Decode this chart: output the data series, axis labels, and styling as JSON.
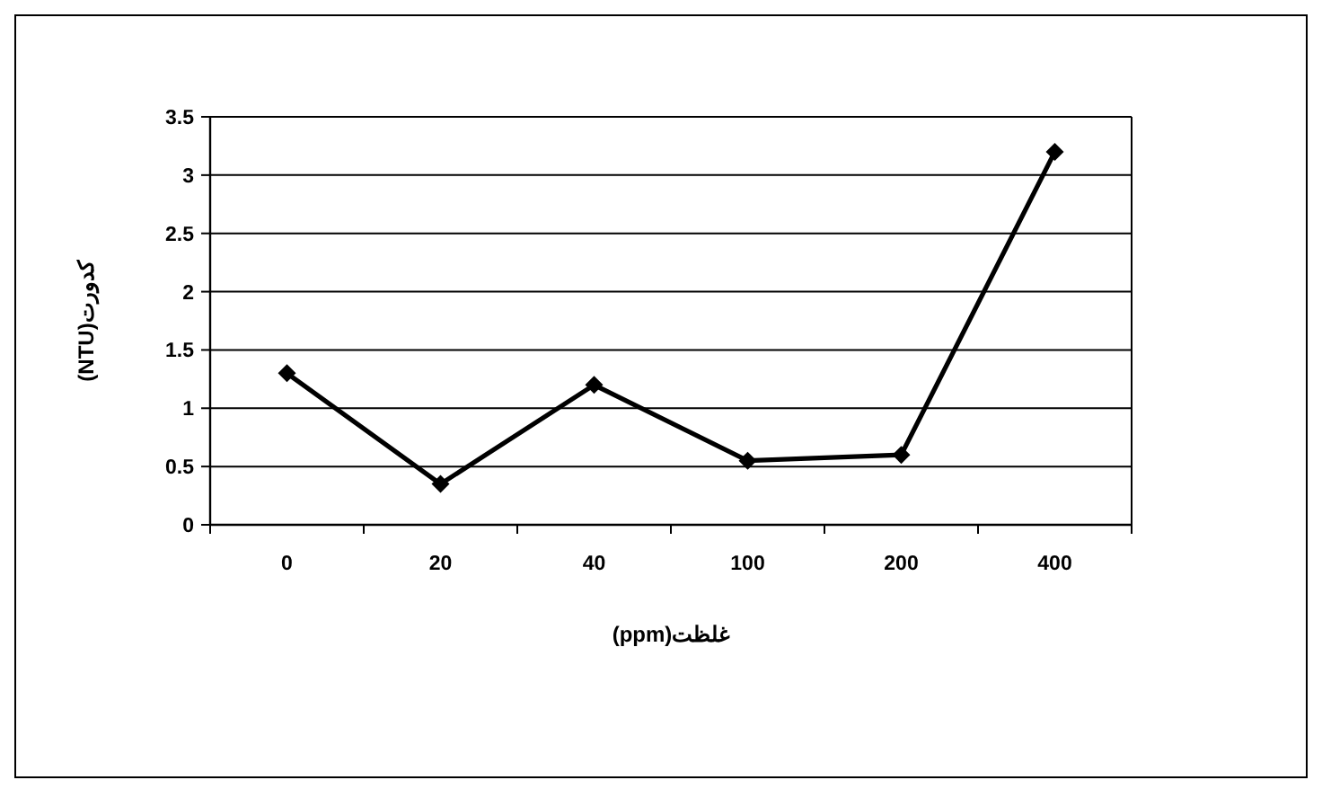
{
  "chart_data": {
    "type": "line",
    "xlabel": "غلظت(ppm)",
    "ylabel": "کدورت(NTU)",
    "categories": [
      "0",
      "20",
      "40",
      "100",
      "200",
      "400"
    ],
    "series": [
      {
        "color": "#000000",
        "values": [
          1.3,
          0.35,
          1.2,
          0.55,
          0.6,
          3.2
        ]
      }
    ],
    "ylim": [
      0,
      3.5
    ],
    "yticks": [
      0,
      0.5,
      1,
      1.5,
      2,
      2.5,
      3,
      3.5
    ],
    "grid": "y",
    "marker": "diamond",
    "line_style": "solid"
  }
}
